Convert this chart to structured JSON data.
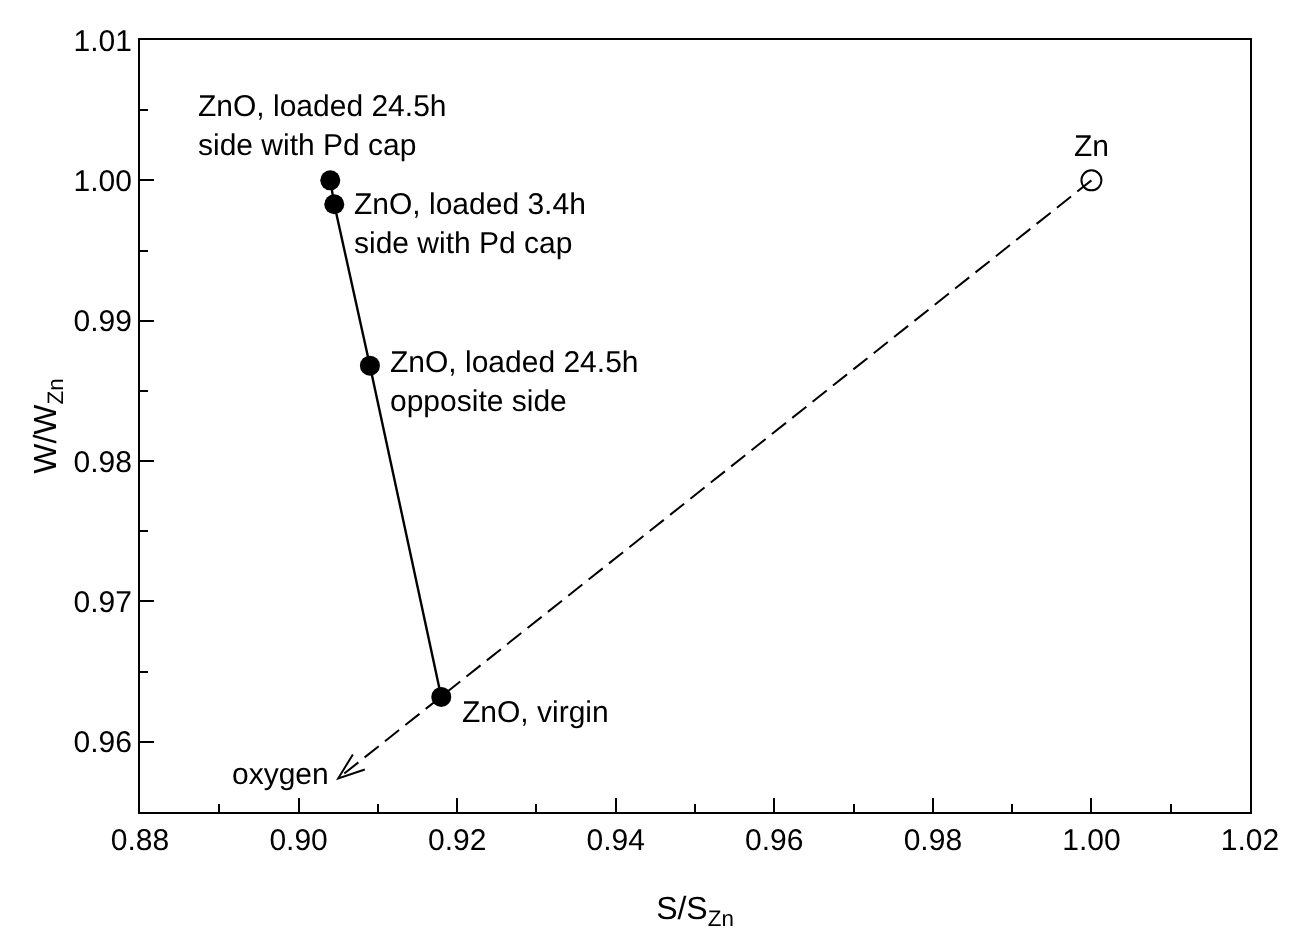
{
  "chart_data": {
    "type": "line",
    "xlabel": "S/S$_{Zn}$",
    "ylabel": "W/W$_{Zn}$",
    "xlim": [
      0.88,
      1.02
    ],
    "xticks": [
      {
        "value": 0.88,
        "label": "0.88"
      },
      {
        "value": 0.9,
        "label": "0.90"
      },
      {
        "value": 0.92,
        "label": "0.92"
      },
      {
        "value": 0.94,
        "label": "0.94"
      },
      {
        "value": 0.96,
        "label": "0.96"
      },
      {
        "value": 0.98,
        "label": "0.98"
      },
      {
        "value": 1.0,
        "label": "1.00"
      },
      {
        "value": 1.02,
        "label": "1.02"
      }
    ],
    "ylim": [
      0.955,
      1.01
    ],
    "yticks": [
      0.96,
      0.97,
      0.98,
      0.99,
      {
        "value": 1.0,
        "label": "1.00"
      },
      1.01
    ],
    "series": [
      {
        "type": "line",
        "color": "#000000",
        "marker": "circle",
        "line_style": "solid",
        "x": [
          0.918,
          0.909,
          0.9045,
          0.904
        ],
        "values": [
          0.9632,
          0.9868,
          0.9983,
          1.0
        ]
      },
      {
        "type": "scatter",
        "color": "#ffffff",
        "marker": "circle",
        "x": [
          1.0
        ],
        "values": [
          1.0
        ]
      }
    ],
    "annotations": [
      {
        "text": "ZnO, loaded 24.5h\nside with Pd cap",
        "x": 0.904,
        "y": 1.0
      },
      {
        "text": "ZnO, loaded 3.4h\nside with Pd cap",
        "x": 0.9045,
        "y": 0.9983
      },
      {
        "text": "ZnO, loaded 24.5h\nopposite side",
        "x": 0.909,
        "y": 0.9868
      },
      {
        "text": "ZnO, virgin",
        "x": 0.918,
        "y": 0.9632
      },
      {
        "text": "Zn",
        "x": 1.0,
        "y": 1.0
      },
      "oxygen"
    ]
  }
}
